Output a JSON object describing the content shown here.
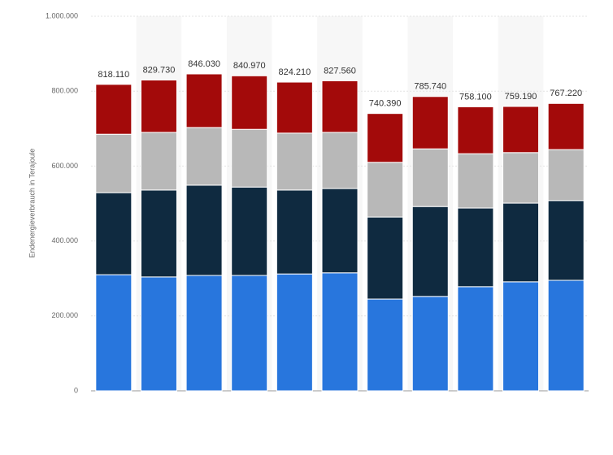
{
  "chart_data": {
    "type": "stacked_bar",
    "y_label": "Endenergieverbrauch in Terajoule",
    "categories": [
      null,
      null,
      null,
      null,
      null,
      null,
      null,
      null,
      null,
      null,
      null
    ],
    "series": [
      {
        "color": "#2876dd",
        "values": [
          310000,
          304000,
          308000,
          308000,
          312000,
          315000,
          245000,
          252000,
          278000,
          291000,
          295000
        ]
      },
      {
        "color": "#0f2a40",
        "values": [
          219000,
          232000,
          241000,
          236000,
          224000,
          225000,
          219000,
          240000,
          210000,
          210000,
          213000
        ]
      },
      {
        "color": "#b8b8b8",
        "values": [
          156000,
          154000,
          154000,
          154000,
          152000,
          150000,
          146000,
          154000,
          145000,
          135000,
          136000
        ]
      },
      {
        "color": "#a30a0a",
        "values": [
          133110,
          139730,
          143030,
          142970,
          136210,
          137560,
          130390,
          139740,
          125100,
          123190,
          123220
        ]
      }
    ],
    "totals": {
      "values": [
        818110,
        829730,
        846030,
        840970,
        824210,
        827560,
        740390,
        785740,
        758100,
        759190,
        767220
      ],
      "value_labels": [
        "818.110",
        "829.730",
        "846.030",
        "840.970",
        "824.210",
        "827.560",
        "740.390",
        "785.740",
        "758.100",
        "759.190",
        "767.220"
      ]
    },
    "ylim": [
      0,
      1000000
    ],
    "yticks": [
      0,
      {
        "value": 200000,
        "label": "200.000"
      },
      {
        "value": 400000,
        "label": "400.000"
      },
      {
        "value": 600000,
        "label": "600.000"
      },
      {
        "value": 800000,
        "label": "800.000"
      },
      {
        "value": 1000000,
        "label": "1.000.000"
      }
    ],
    "grid": true
  }
}
